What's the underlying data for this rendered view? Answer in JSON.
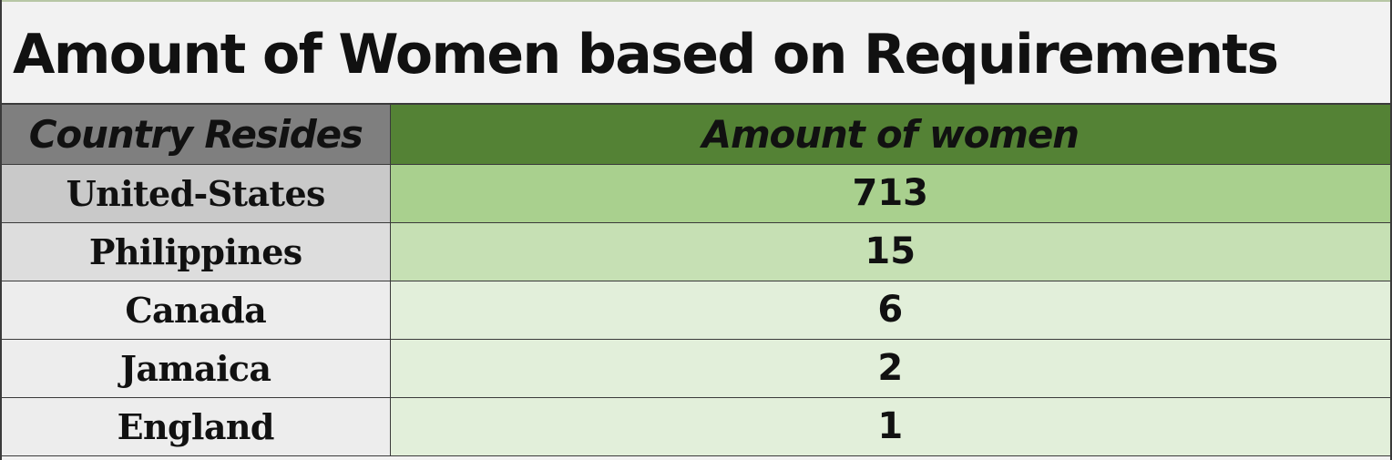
{
  "chart_data": {
    "type": "table",
    "title": "Amount of Women based on Requirements",
    "columns": [
      "Country Resides",
      "Amount of women"
    ],
    "rows": [
      {
        "country": "United-States",
        "amount": "713"
      },
      {
        "country": "Philippines",
        "amount": "15"
      },
      {
        "country": "Canada",
        "amount": "6"
      },
      {
        "country": "Jamaica",
        "amount": "2"
      },
      {
        "country": "England",
        "amount": "1"
      }
    ],
    "categories": [
      "United-States",
      "Philippines",
      "Canada",
      "Jamaica",
      "England"
    ],
    "values": [
      713,
      15,
      6,
      2,
      1
    ],
    "colors": {
      "header_country": "#7f7f7f",
      "header_amount": "#548235",
      "amount_highest": "#a9d08e",
      "amount_second": "#c6e0b4",
      "amount_rest": "#e2efda"
    }
  }
}
